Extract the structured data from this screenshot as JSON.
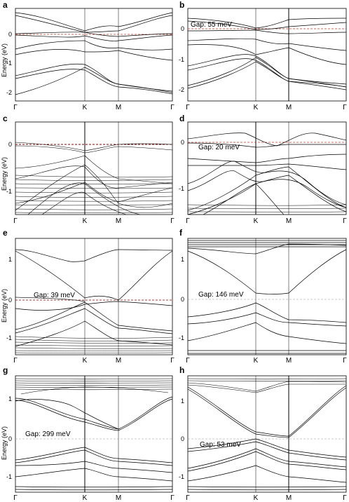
{
  "figure": {
    "panels": [
      {
        "id": "a",
        "label": "a",
        "gap": "",
        "ylabel": "Energy (eV)",
        "yticks": [
          "0",
          "-1",
          "-2"
        ],
        "kpoints": [
          "Γ",
          "K",
          "M",
          "Γ"
        ],
        "fermi_color": "#c0392b"
      },
      {
        "id": "b",
        "label": "b",
        "gap": "Gap: 55 meV",
        "ylabel": "",
        "yticks": [
          "0",
          "-1",
          "-2"
        ],
        "kpoints": [
          "Γ",
          "K",
          "M",
          "Γ"
        ],
        "fermi_color": "#c0392b"
      },
      {
        "id": "c",
        "label": "c",
        "gap": "",
        "ylabel": "Energy (eV)",
        "yticks": [
          "0",
          "-1"
        ],
        "kpoints": [
          "Γ",
          "K",
          "M",
          "Γ"
        ],
        "fermi_color": "#8b0000"
      },
      {
        "id": "d",
        "label": "d",
        "gap": "Gap: 20 meV",
        "ylabel": "",
        "yticks": [
          "0",
          "-1"
        ],
        "kpoints": [
          "Γ",
          "K",
          "M",
          "Γ"
        ],
        "fermi_color": "#c0392b"
      },
      {
        "id": "e",
        "label": "e",
        "gap": "Gap: 39 meV",
        "ylabel": "Energy (eV)",
        "yticks": [
          "1",
          "0",
          "-1"
        ],
        "kpoints": [
          "Γ",
          "K",
          "M",
          "Γ"
        ],
        "fermi_color": "#8b0000"
      },
      {
        "id": "f",
        "label": "f",
        "gap": "Gap: 146 meV",
        "ylabel": "",
        "yticks": [
          "1",
          "0",
          "-1"
        ],
        "kpoints": [
          "Γ",
          "K",
          "M",
          "Γ"
        ],
        "fermi_color": "#999999"
      },
      {
        "id": "g",
        "label": "g",
        "gap": "Gap: 299 meV",
        "ylabel": "Energy (eV)",
        "yticks": [
          "1",
          "0",
          "-1"
        ],
        "kpoints": [
          "Γ",
          "K",
          "M",
          "Γ"
        ],
        "fermi_color": "#999999"
      },
      {
        "id": "h",
        "label": "h",
        "gap": "Gap: 53 meV",
        "ylabel": "",
        "yticks": [
          "1",
          "0",
          "-1"
        ],
        "kpoints": [
          "Γ",
          "K",
          "M",
          "Γ"
        ],
        "fermi_color": "#999999"
      }
    ]
  }
}
